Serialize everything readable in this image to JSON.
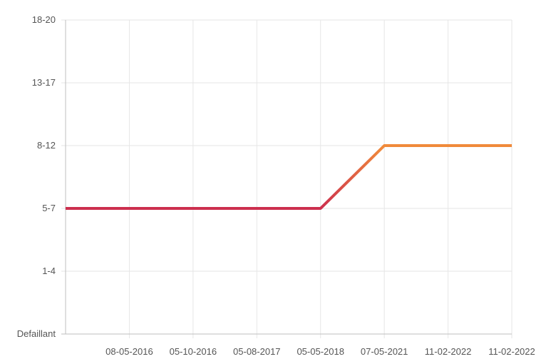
{
  "chart_data": {
    "type": "line",
    "title": "",
    "xlabel": "",
    "ylabel": "",
    "categories": [
      "",
      "08-05-2016",
      "05-10-2016",
      "05-08-2017",
      "05-05-2018",
      "07-05-2021",
      "11-02-2022",
      "11-02-2022"
    ],
    "y_levels": [
      "Defaillant",
      "1-4",
      "5-7",
      "8-12",
      "13-17",
      "18-20"
    ],
    "series": [
      {
        "values": [
          2,
          2,
          2,
          2,
          2,
          3,
          3,
          3
        ]
      }
    ],
    "grid": true,
    "legend": "none",
    "colors": {
      "low": "#cc2f4e",
      "high": "#f08a3b",
      "grid": "#e6e6e6",
      "axis": "#bfbfbf",
      "text": "#555555"
    }
  }
}
